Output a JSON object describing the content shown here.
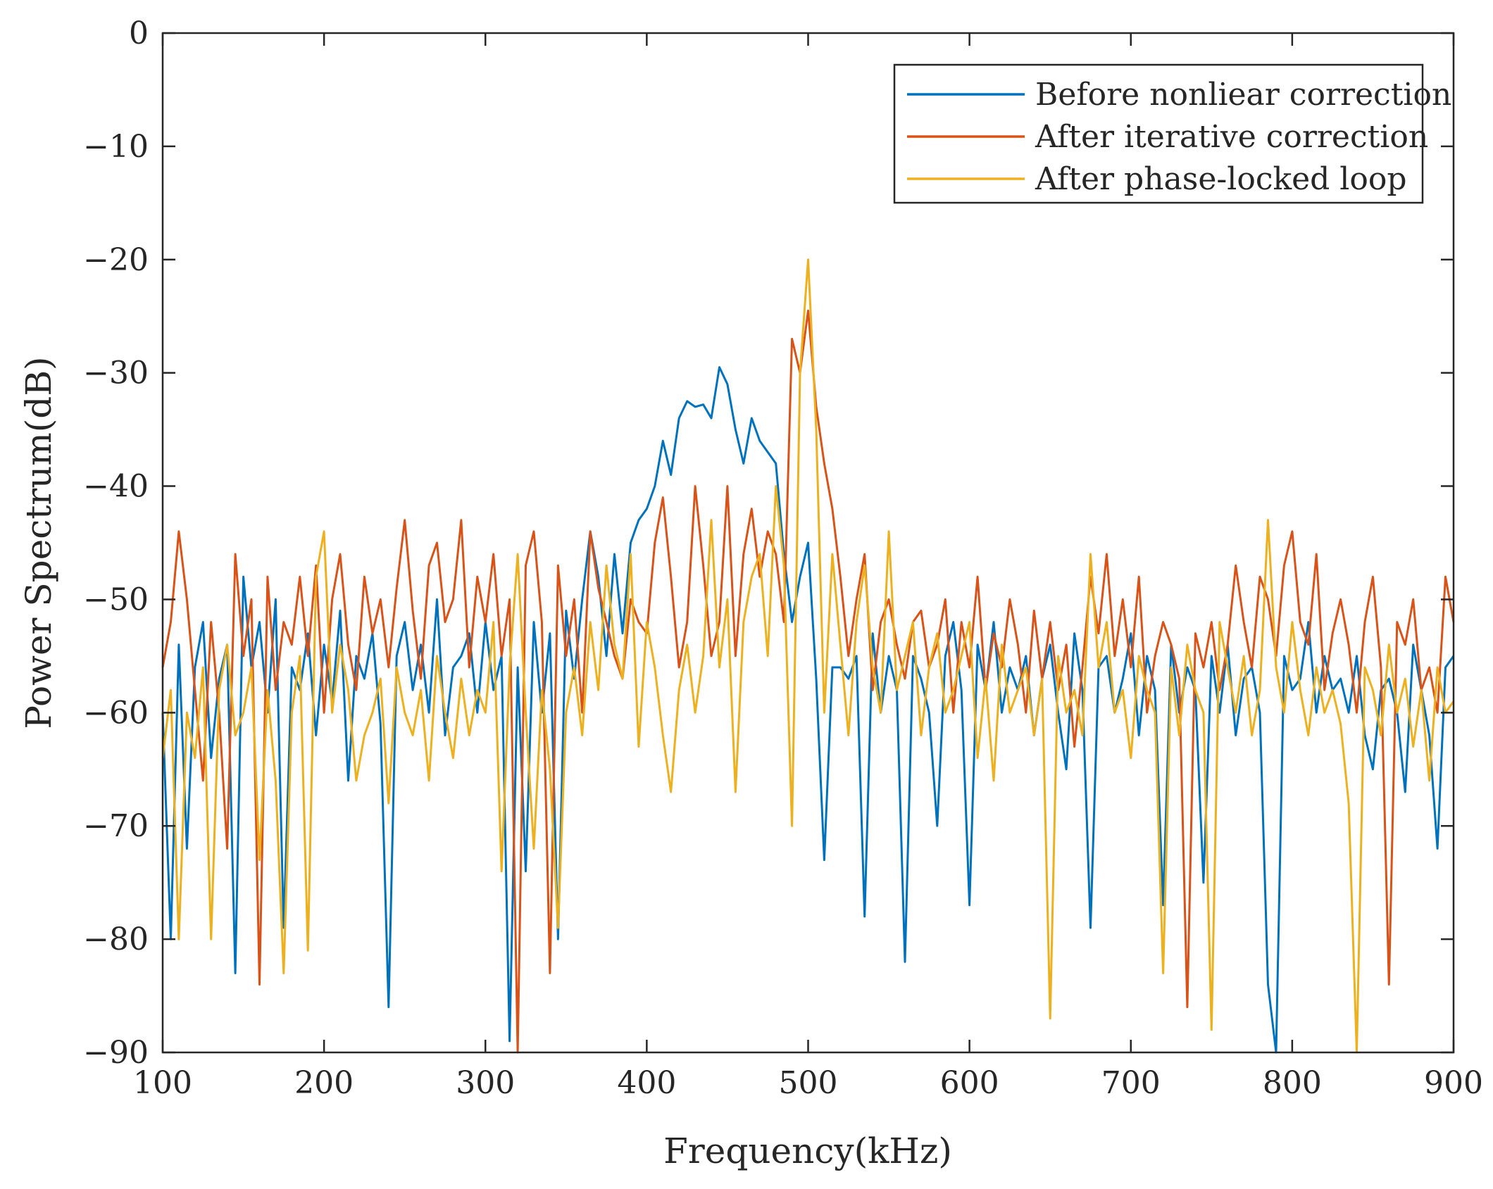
{
  "chart_data": {
    "type": "line",
    "title": "",
    "xlabel": "Frequency(kHz)",
    "ylabel": "Power Spectrum(dB)",
    "xlim": [
      100,
      900
    ],
    "ylim": [
      -90,
      0
    ],
    "xticks": [
      100,
      200,
      300,
      400,
      500,
      600,
      700,
      800,
      900
    ],
    "yticks": [
      0,
      -10,
      -20,
      -30,
      -40,
      -50,
      -60,
      -70,
      -80,
      -90
    ],
    "xtick_labels": [
      "100",
      "200",
      "300",
      "400",
      "500",
      "600",
      "700",
      "800",
      "900"
    ],
    "ytick_labels": [
      "0",
      "−10",
      "−20",
      "−30",
      "−40",
      "−50",
      "−60",
      "−70",
      "−80",
      "−90"
    ],
    "grid": false,
    "legend_position": "top-right",
    "series": [
      {
        "name": "Before nonliear correction",
        "color": "#0072BD",
        "x": [
          100,
          105,
          110,
          115,
          120,
          125,
          130,
          135,
          140,
          145,
          150,
          155,
          160,
          165,
          170,
          175,
          180,
          185,
          190,
          195,
          200,
          205,
          210,
          215,
          220,
          225,
          230,
          235,
          240,
          245,
          250,
          255,
          260,
          265,
          270,
          275,
          280,
          285,
          290,
          295,
          300,
          305,
          310,
          315,
          320,
          325,
          330,
          335,
          340,
          345,
          350,
          355,
          360,
          365,
          370,
          375,
          380,
          385,
          390,
          395,
          400,
          405,
          410,
          415,
          420,
          425,
          430,
          435,
          440,
          445,
          450,
          455,
          460,
          465,
          470,
          475,
          480,
          485,
          490,
          495,
          500,
          505,
          510,
          515,
          520,
          525,
          530,
          535,
          540,
          545,
          550,
          555,
          560,
          565,
          570,
          575,
          580,
          585,
          590,
          595,
          600,
          605,
          610,
          615,
          620,
          625,
          630,
          635,
          640,
          645,
          650,
          655,
          660,
          665,
          670,
          675,
          680,
          685,
          690,
          695,
          700,
          705,
          710,
          715,
          720,
          725,
          730,
          735,
          740,
          745,
          750,
          755,
          760,
          765,
          770,
          775,
          780,
          785,
          790,
          795,
          800,
          805,
          810,
          815,
          820,
          825,
          830,
          835,
          840,
          845,
          850,
          855,
          860,
          865,
          870,
          875,
          880,
          885,
          890,
          895,
          900
        ],
        "y": [
          -60,
          -80,
          -54,
          -72,
          -56,
          -52,
          -64,
          -57,
          -54,
          -83,
          -48,
          -56,
          -52,
          -60,
          -50,
          -79,
          -56,
          -58,
          -53,
          -62,
          -54,
          -59,
          -51,
          -66,
          -55,
          -57,
          -53,
          -61,
          -86,
          -55,
          -52,
          -58,
          -54,
          -60,
          -50,
          -62,
          -56,
          -55,
          -53,
          -60,
          -52,
          -58,
          -55,
          -89,
          -56,
          -74,
          -52,
          -60,
          -53,
          -80,
          -51,
          -57,
          -50,
          -44,
          -48,
          -55,
          -46,
          -53,
          -45,
          -43,
          -42,
          -40,
          -36,
          -39,
          -34,
          -32.5,
          -33,
          -32.8,
          -34,
          -29.5,
          -31,
          -35,
          -38,
          -34,
          -36,
          -37,
          -38,
          -46,
          -52,
          -48,
          -45,
          -57,
          -73,
          -56,
          -56,
          -57,
          -55,
          -78,
          -53,
          -60,
          -55,
          -58,
          -82,
          -55,
          -57,
          -60,
          -70,
          -55,
          -52,
          -58,
          -77,
          -54,
          -58,
          -52,
          -60,
          -56,
          -58,
          -55,
          -62,
          -57,
          -54,
          -60,
          -65,
          -53,
          -58,
          -79,
          -56,
          -55,
          -60,
          -57,
          -53,
          -62,
          -55,
          -58,
          -77,
          -54,
          -60,
          -56,
          -58,
          -75,
          -55,
          -60,
          -54,
          -62,
          -57,
          -56,
          -60,
          -84,
          -90,
          -55,
          -58,
          -57,
          -52,
          -60,
          -55,
          -58,
          -57,
          -60,
          -55,
          -62,
          -65,
          -58,
          -57,
          -60,
          -67,
          -54,
          -58,
          -62,
          -72,
          -56,
          -55
        ]
      },
      {
        "name": "After iterative correction",
        "color": "#D95319",
        "x": [
          100,
          105,
          110,
          115,
          120,
          125,
          130,
          135,
          140,
          145,
          150,
          155,
          160,
          165,
          170,
          175,
          180,
          185,
          190,
          195,
          200,
          205,
          210,
          215,
          220,
          225,
          230,
          235,
          240,
          245,
          250,
          255,
          260,
          265,
          270,
          275,
          280,
          285,
          290,
          295,
          300,
          305,
          310,
          315,
          320,
          325,
          330,
          335,
          340,
          345,
          350,
          355,
          360,
          365,
          370,
          375,
          380,
          385,
          390,
          395,
          400,
          405,
          410,
          415,
          420,
          425,
          430,
          435,
          440,
          445,
          450,
          455,
          460,
          465,
          470,
          475,
          480,
          485,
          490,
          495,
          500,
          505,
          510,
          515,
          520,
          525,
          530,
          535,
          540,
          545,
          550,
          555,
          560,
          565,
          570,
          575,
          580,
          585,
          590,
          595,
          600,
          605,
          610,
          615,
          620,
          625,
          630,
          635,
          640,
          645,
          650,
          655,
          660,
          665,
          670,
          675,
          680,
          685,
          690,
          695,
          700,
          705,
          710,
          715,
          720,
          725,
          730,
          735,
          740,
          745,
          750,
          755,
          760,
          765,
          770,
          775,
          780,
          785,
          790,
          795,
          800,
          805,
          810,
          815,
          820,
          825,
          830,
          835,
          840,
          845,
          850,
          855,
          860,
          865,
          870,
          875,
          880,
          885,
          890,
          895,
          900
        ],
        "y": [
          -56,
          -52,
          -44,
          -50,
          -58,
          -66,
          -52,
          -60,
          -72,
          -46,
          -55,
          -50,
          -84,
          -48,
          -58,
          -52,
          -54,
          -48,
          -55,
          -47,
          -60,
          -50,
          -46,
          -54,
          -58,
          -48,
          -53,
          -50,
          -56,
          -49,
          -43,
          -51,
          -57,
          -47,
          -45,
          -52,
          -50,
          -43,
          -56,
          -48,
          -52,
          -46,
          -55,
          -50,
          -90,
          -47,
          -44,
          -52,
          -83,
          -47,
          -55,
          -50,
          -60,
          -44,
          -49,
          -52,
          -55,
          -57,
          -50,
          -52,
          -53,
          -45,
          -41,
          -48,
          -56,
          -52,
          -40,
          -47,
          -55,
          -52,
          -40,
          -55,
          -46,
          -42,
          -48,
          -44,
          -46,
          -52,
          -27,
          -30,
          -24.5,
          -33,
          -38,
          -42,
          -48,
          -55,
          -50,
          -46,
          -58,
          -52,
          -50,
          -54,
          -57,
          -52,
          -51,
          -56,
          -54,
          -50,
          -60,
          -52,
          -56,
          -48,
          -58,
          -53,
          -56,
          -50,
          -54,
          -60,
          -51,
          -57,
          -52,
          -58,
          -54,
          -63,
          -56,
          -48,
          -53,
          -46,
          -55,
          -50,
          -56,
          -48,
          -60,
          -55,
          -52,
          -54,
          -57,
          -86,
          -53,
          -56,
          -52,
          -58,
          -54,
          -47,
          -52,
          -56,
          -48,
          -50,
          -55,
          -47,
          -44,
          -52,
          -54,
          -46,
          -58,
          -53,
          -50,
          -54,
          -60,
          -52,
          -48,
          -56,
          -84,
          -52,
          -54,
          -50,
          -58,
          -56,
          -60,
          -48,
          -52
        ]
      },
      {
        "name": "After phase-locked loop",
        "color": "#EDB120",
        "x": [
          100,
          105,
          110,
          115,
          120,
          125,
          130,
          135,
          140,
          145,
          150,
          155,
          160,
          165,
          170,
          175,
          180,
          185,
          190,
          195,
          200,
          205,
          210,
          215,
          220,
          225,
          230,
          235,
          240,
          245,
          250,
          255,
          260,
          265,
          270,
          275,
          280,
          285,
          290,
          295,
          300,
          305,
          310,
          315,
          320,
          325,
          330,
          335,
          340,
          345,
          350,
          355,
          360,
          365,
          370,
          375,
          380,
          385,
          390,
          395,
          400,
          405,
          410,
          415,
          420,
          425,
          430,
          435,
          440,
          445,
          450,
          455,
          460,
          465,
          470,
          475,
          480,
          485,
          490,
          495,
          500,
          505,
          510,
          515,
          520,
          525,
          530,
          535,
          540,
          545,
          550,
          555,
          560,
          565,
          570,
          575,
          580,
          585,
          590,
          595,
          600,
          605,
          610,
          615,
          620,
          625,
          630,
          635,
          640,
          645,
          650,
          655,
          660,
          665,
          670,
          675,
          680,
          685,
          690,
          695,
          700,
          705,
          710,
          715,
          720,
          725,
          730,
          735,
          740,
          745,
          750,
          755,
          760,
          765,
          770,
          775,
          780,
          785,
          790,
          795,
          800,
          805,
          810,
          815,
          820,
          825,
          830,
          835,
          840,
          845,
          850,
          855,
          860,
          865,
          870,
          875,
          880,
          885,
          890,
          895,
          900
        ],
        "y": [
          -64,
          -58,
          -80,
          -60,
          -64,
          -56,
          -80,
          -58,
          -54,
          -62,
          -60,
          -56,
          -73,
          -58,
          -66,
          -83,
          -60,
          -55,
          -81,
          -48,
          -44,
          -60,
          -54,
          -58,
          -66,
          -62,
          -60,
          -57,
          -68,
          -56,
          -60,
          -62,
          -58,
          -66,
          -55,
          -60,
          -64,
          -57,
          -62,
          -58,
          -60,
          -52,
          -74,
          -56,
          -46,
          -60,
          -72,
          -58,
          -65,
          -79,
          -60,
          -56,
          -62,
          -52,
          -58,
          -47,
          -54,
          -57,
          -46,
          -63,
          -52,
          -56,
          -62,
          -67,
          -58,
          -54,
          -60,
          -55,
          -43,
          -56,
          -50,
          -67,
          -52,
          -48,
          -46,
          -55,
          -40,
          -47,
          -70,
          -30,
          -20,
          -35,
          -60,
          -46,
          -54,
          -62,
          -52,
          -47,
          -56,
          -60,
          -44,
          -58,
          -55,
          -52,
          -62,
          -56,
          -53,
          -60,
          -58,
          -55,
          -52,
          -64,
          -57,
          -66,
          -54,
          -60,
          -58,
          -56,
          -62,
          -57,
          -87,
          -55,
          -60,
          -58,
          -62,
          -46,
          -56,
          -52,
          -60,
          -58,
          -64,
          -55,
          -58,
          -60,
          -83,
          -56,
          -62,
          -54,
          -58,
          -60,
          -88,
          -52,
          -56,
          -60,
          -55,
          -62,
          -58,
          -43,
          -56,
          -60,
          -52,
          -58,
          -62,
          -56,
          -60,
          -58,
          -61,
          -68,
          -90,
          -56,
          -58,
          -62,
          -54,
          -60,
          -57,
          -63,
          -58,
          -66,
          -56,
          -60,
          -59
        ]
      }
    ]
  }
}
